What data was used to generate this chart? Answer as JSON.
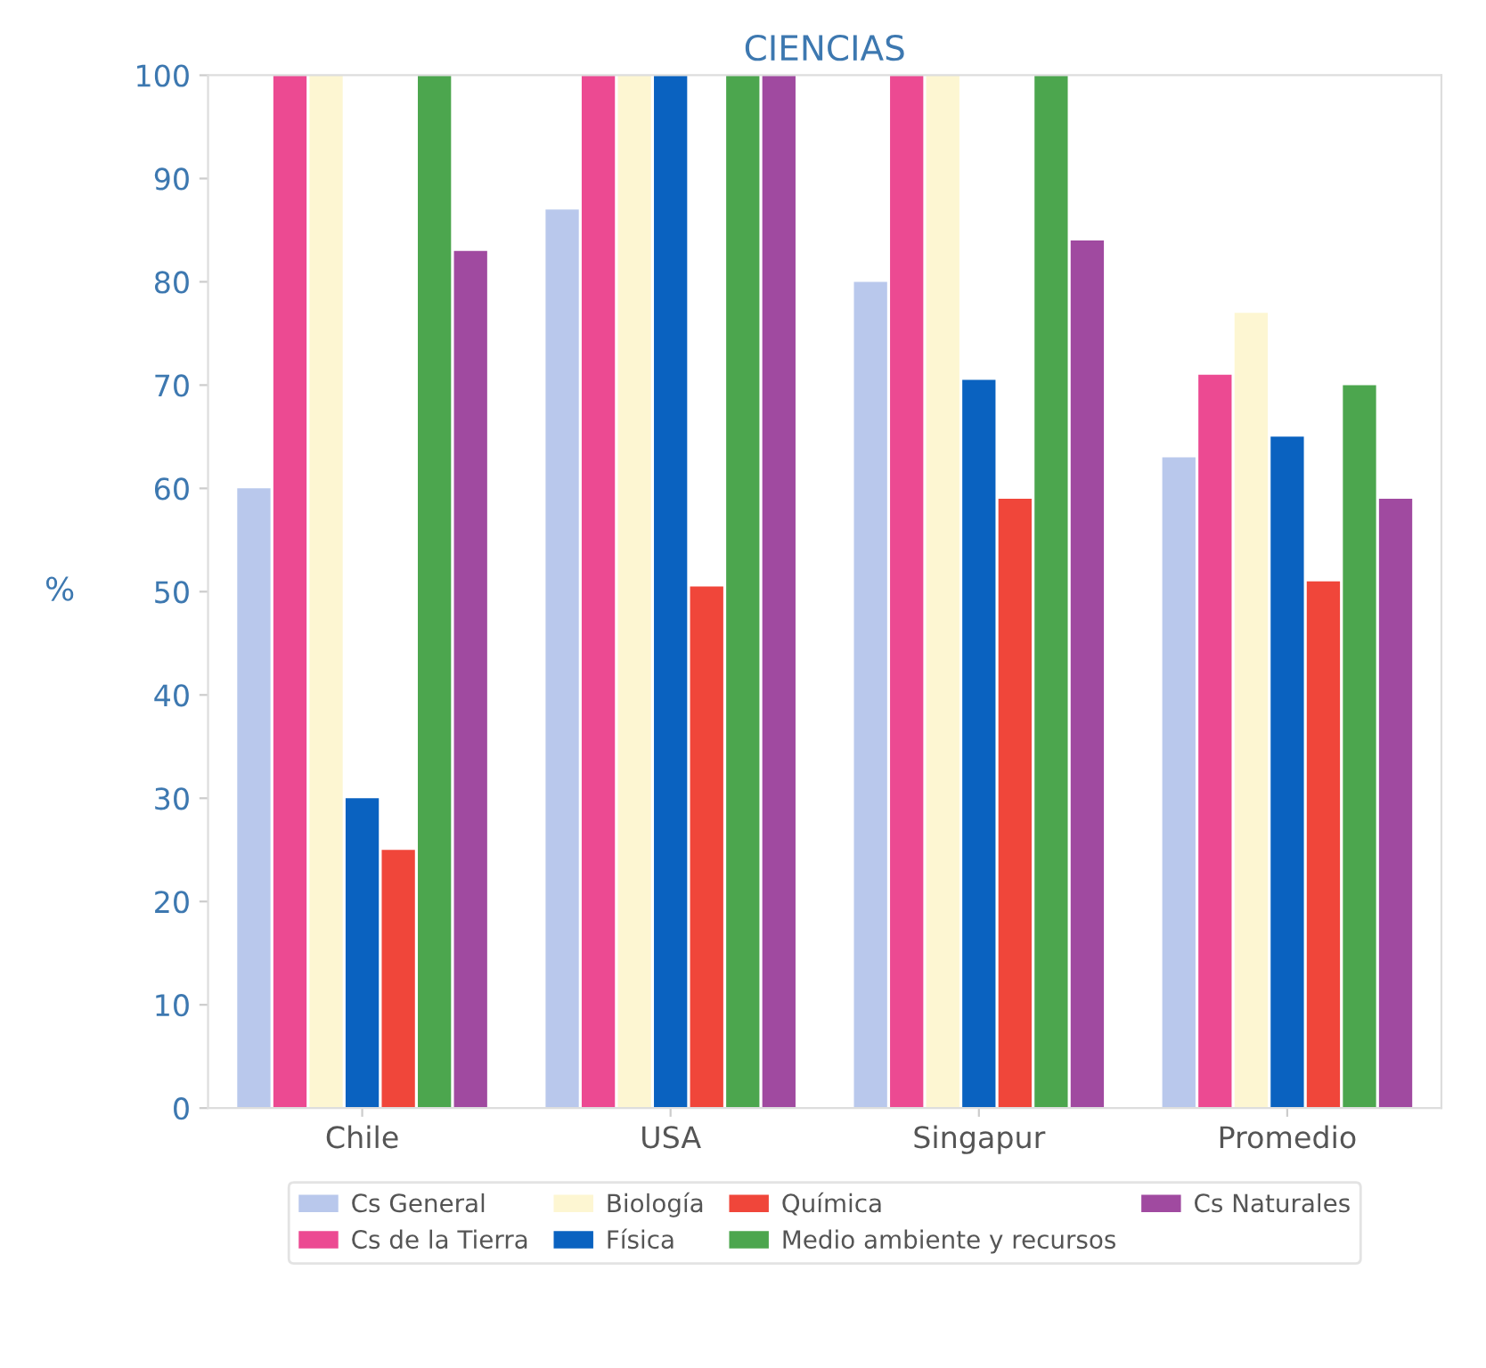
{
  "chart_data": {
    "type": "bar",
    "title": "CIENCIAS",
    "ylabel": "%",
    "categories": [
      "Chile",
      "USA",
      "Singapur",
      "Promedio"
    ],
    "series": [
      {
        "name": "Cs General",
        "color": "#b9c8ec",
        "values": [
          60,
          87,
          80,
          63
        ]
      },
      {
        "name": "Cs de la Tierra",
        "color": "#ec4a92",
        "values": [
          100,
          100,
          100,
          71
        ]
      },
      {
        "name": "Biología",
        "color": "#fdf6d2",
        "values": [
          100,
          100,
          100,
          77
        ]
      },
      {
        "name": "Física",
        "color": "#0a62c0",
        "values": [
          30,
          100,
          70.5,
          65
        ]
      },
      {
        "name": "Química",
        "color": "#f0463a",
        "values": [
          25,
          50.5,
          59,
          51
        ]
      },
      {
        "name": "Medio ambiente y recursos",
        "color": "#4ca64e",
        "values": [
          100,
          100,
          100,
          70
        ]
      },
      {
        "name": "Cs Naturales",
        "color": "#a04aa0",
        "values": [
          83,
          100,
          84,
          59
        ]
      }
    ],
    "ylim": [
      0,
      100
    ],
    "yticks": [
      0,
      10,
      20,
      30,
      40,
      50,
      60,
      70,
      80,
      90,
      100
    ],
    "grid": false,
    "legend": "bottom"
  }
}
